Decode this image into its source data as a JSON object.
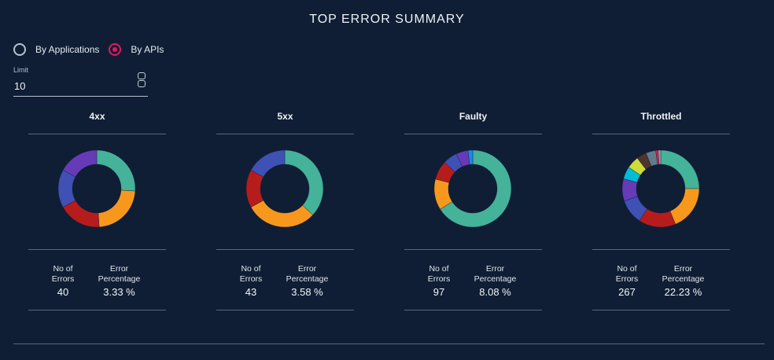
{
  "title": "TOP ERROR SUMMARY",
  "radios": [
    {
      "label": "By Applications",
      "selected": false
    },
    {
      "label": "By APIs",
      "selected": true
    }
  ],
  "limit": {
    "label": "Limit",
    "value": "10"
  },
  "panels": [
    {
      "title": "4xx",
      "errors_label": [
        "No of",
        "Errors"
      ],
      "errors": "40",
      "pct_label": [
        "Error",
        "Percentage"
      ],
      "pct": "3.33 %",
      "segments": [
        {
          "color": "#45b29a",
          "value": 26
        },
        {
          "color": "#f7981d",
          "value": 23
        },
        {
          "color": "#b71c1c",
          "value": 18
        },
        {
          "color": "#3f51b5",
          "value": 16
        },
        {
          "color": "#673ab7",
          "value": 17
        }
      ]
    },
    {
      "title": "5xx",
      "errors_label": [
        "No of",
        "Errors"
      ],
      "errors": "43",
      "pct_label": [
        "Error",
        "Percentage"
      ],
      "pct": "3.58 %",
      "segments": [
        {
          "color": "#45b29a",
          "value": 37
        },
        {
          "color": "#f7981d",
          "value": 30
        },
        {
          "color": "#b71c1c",
          "value": 16
        },
        {
          "color": "#3f51b5",
          "value": 17
        }
      ]
    },
    {
      "title": "Faulty",
      "errors_label": [
        "No of",
        "Errors"
      ],
      "errors": "97",
      "pct_label": [
        "Error",
        "Percentage"
      ],
      "pct": "8.08 %",
      "segments": [
        {
          "color": "#45b29a",
          "value": 66
        },
        {
          "color": "#f7981d",
          "value": 13
        },
        {
          "color": "#b71c1c",
          "value": 8
        },
        {
          "color": "#3f51b5",
          "value": 6
        },
        {
          "color": "#673ab7",
          "value": 5
        },
        {
          "color": "#1e88e5",
          "value": 2
        }
      ]
    },
    {
      "title": "Throttled",
      "errors_label": [
        "No of",
        "Errors"
      ],
      "errors": "267",
      "pct_label": [
        "Error",
        "Percentage"
      ],
      "pct": "22.23 %",
      "segments": [
        {
          "color": "#45b29a",
          "value": 24
        },
        {
          "color": "#f7981d",
          "value": 18
        },
        {
          "color": "#b71c1c",
          "value": 15
        },
        {
          "color": "#3f51b5",
          "value": 10
        },
        {
          "color": "#673ab7",
          "value": 9
        },
        {
          "color": "#00bcd4",
          "value": 5
        },
        {
          "color": "#cddc39",
          "value": 5
        },
        {
          "color": "#4e342e",
          "value": 4
        },
        {
          "color": "#607d8b",
          "value": 4
        },
        {
          "color": "#e8175d",
          "value": 1
        },
        {
          "color": "#9e9e9e",
          "value": 1
        }
      ]
    }
  ]
}
